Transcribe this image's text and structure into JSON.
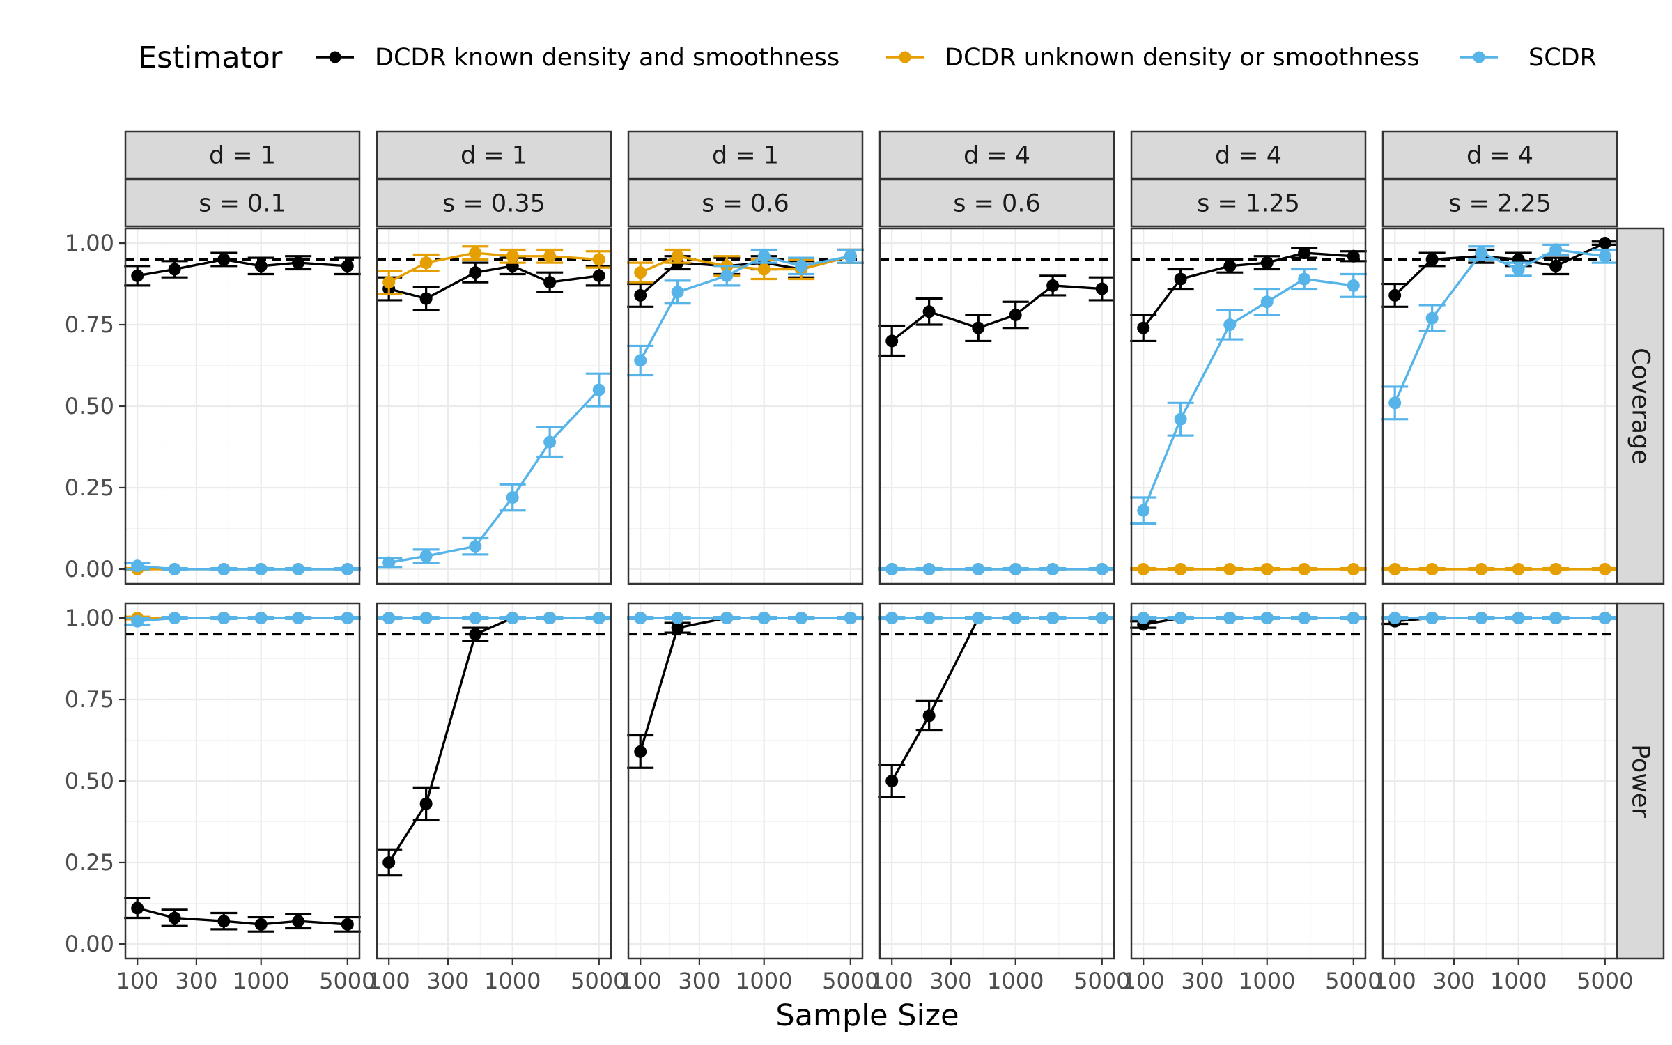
{
  "chart_data": {
    "type": "line",
    "xlabel": "Sample Size",
    "ylabel": "",
    "legend": {
      "title": "Estimator",
      "position": "top",
      "entries": [
        {
          "name": "DCDR known density and smoothness",
          "color": "#000000"
        },
        {
          "name": "DCDR unknown density or smoothness",
          "color": "#E69F00"
        },
        {
          "name": "SCDR",
          "color": "#56B4E9"
        }
      ]
    },
    "x": [
      100,
      200,
      500,
      1000,
      2000,
      5000
    ],
    "x_scale": "log",
    "x_ticks": [
      100,
      300,
      1000,
      5000
    ],
    "x_tick_labels": [
      "100",
      "300",
      "1000",
      "5000"
    ],
    "ylim": [
      0,
      1
    ],
    "y_ticks": [
      0,
      0.25,
      0.5,
      0.75,
      1
    ],
    "y_tick_labels": [
      "0.00",
      "0.25",
      "0.50",
      "0.75",
      "1.00"
    ],
    "reference_line": 0.95,
    "grid": true,
    "column_strips": [
      {
        "d": "d = 1",
        "s": "s = 0.1"
      },
      {
        "d": "d = 1",
        "s": "s = 0.35"
      },
      {
        "d": "d = 1",
        "s": "s = 0.6"
      },
      {
        "d": "d = 4",
        "s": "s = 0.6"
      },
      {
        "d": "d = 4",
        "s": "s = 1.25"
      },
      {
        "d": "d = 4",
        "s": "s = 2.25"
      }
    ],
    "row_strips": [
      "Coverage",
      "Power"
    ],
    "panels": [
      [
        {
          "series": [
            {
              "name": "DCDR known density and smoothness",
              "values": [
                0.9,
                0.92,
                0.95,
                0.93,
                0.94,
                0.93
              ],
              "err": [
                0.03,
                0.025,
                0.02,
                0.025,
                0.02,
                0.025
              ]
            },
            {
              "name": "DCDR unknown density or smoothness",
              "values": [
                0.0,
                0.0,
                0.0,
                0.0,
                0.0,
                0.0
              ],
              "err": [
                0.003,
                0.003,
                0.003,
                0.003,
                0.003,
                0.003
              ]
            },
            {
              "name": "SCDR",
              "values": [
                0.01,
                0.0,
                0.0,
                0.0,
                0.0,
                0.0
              ],
              "err": [
                0.01,
                0.003,
                0.003,
                0.003,
                0.003,
                0.003
              ]
            }
          ]
        },
        {
          "series": [
            {
              "name": "DCDR known density and smoothness",
              "values": [
                0.86,
                0.83,
                0.91,
                0.93,
                0.88,
                0.9
              ],
              "err": [
                0.035,
                0.035,
                0.03,
                0.025,
                0.03,
                0.03
              ]
            },
            {
              "name": "DCDR unknown density or smoothness",
              "values": [
                0.88,
                0.94,
                0.97,
                0.96,
                0.96,
                0.95
              ],
              "err": [
                0.035,
                0.025,
                0.02,
                0.02,
                0.02,
                0.025
              ]
            },
            {
              "name": "SCDR",
              "values": [
                0.02,
                0.04,
                0.07,
                0.22,
                0.39,
                0.55
              ],
              "err": [
                0.015,
                0.02,
                0.025,
                0.04,
                0.045,
                0.05
              ]
            }
          ]
        },
        {
          "series": [
            {
              "name": "DCDR known density and smoothness",
              "values": [
                0.84,
                0.94,
                0.93,
                0.94,
                0.92,
                0.96
              ],
              "err": [
                0.035,
                0.02,
                0.025,
                0.02,
                0.025,
                0.02
              ]
            },
            {
              "name": "DCDR unknown density or smoothness",
              "values": [
                0.91,
                0.96,
                0.93,
                0.92,
                0.92,
                0.96
              ],
              "err": [
                0.03,
                0.02,
                0.03,
                0.03,
                0.03,
                0.02
              ]
            },
            {
              "name": "SCDR",
              "values": [
                0.64,
                0.85,
                0.9,
                0.96,
                0.93,
                0.96
              ],
              "err": [
                0.045,
                0.035,
                0.03,
                0.02,
                0.025,
                0.02
              ]
            }
          ]
        },
        {
          "series": [
            {
              "name": "DCDR known density and smoothness",
              "values": [
                0.7,
                0.79,
                0.74,
                0.78,
                0.87,
                0.86
              ],
              "err": [
                0.045,
                0.04,
                0.04,
                0.04,
                0.03,
                0.035
              ]
            },
            {
              "name": "DCDR unknown density or smoothness",
              "values": [
                0.0,
                0.0,
                0.0,
                0.0,
                0.0,
                0.0
              ],
              "err": [
                0.003,
                0.003,
                0.003,
                0.003,
                0.003,
                0.003
              ]
            },
            {
              "name": "SCDR",
              "values": [
                0.0,
                0.0,
                0.0,
                0.0,
                0.0,
                0.0
              ],
              "err": [
                0.003,
                0.003,
                0.003,
                0.003,
                0.003,
                0.003
              ]
            }
          ]
        },
        {
          "series": [
            {
              "name": "DCDR known density and smoothness",
              "values": [
                0.74,
                0.89,
                0.93,
                0.94,
                0.97,
                0.96
              ],
              "err": [
                0.04,
                0.03,
                0.02,
                0.02,
                0.015,
                0.015
              ]
            },
            {
              "name": "DCDR unknown density or smoothness",
              "values": [
                0.0,
                0.0,
                0.0,
                0.0,
                0.0,
                0.0
              ],
              "err": [
                0.003,
                0.003,
                0.003,
                0.003,
                0.003,
                0.003
              ]
            },
            {
              "name": "SCDR",
              "values": [
                0.18,
                0.46,
                0.75,
                0.82,
                0.89,
                0.87
              ],
              "err": [
                0.04,
                0.05,
                0.045,
                0.04,
                0.03,
                0.035
              ]
            }
          ]
        },
        {
          "series": [
            {
              "name": "DCDR known density and smoothness",
              "values": [
                0.84,
                0.95,
                0.96,
                0.95,
                0.93,
                1.0
              ],
              "err": [
                0.035,
                0.02,
                0.02,
                0.02,
                0.025,
                0.005
              ]
            },
            {
              "name": "DCDR unknown density or smoothness",
              "values": [
                0.0,
                0.0,
                0.0,
                0.0,
                0.0,
                0.0
              ],
              "err": [
                0.003,
                0.003,
                0.003,
                0.003,
                0.003,
                0.003
              ]
            },
            {
              "name": "SCDR",
              "values": [
                0.51,
                0.77,
                0.97,
                0.92,
                0.98,
                0.96
              ],
              "err": [
                0.05,
                0.04,
                0.02,
                0.02,
                0.015,
                0.02
              ]
            }
          ]
        }
      ],
      [
        {
          "series": [
            {
              "name": "DCDR known density and smoothness",
              "values": [
                0.11,
                0.08,
                0.07,
                0.06,
                0.07,
                0.06
              ],
              "err": [
                0.03,
                0.025,
                0.025,
                0.022,
                0.022,
                0.022
              ]
            },
            {
              "name": "DCDR unknown density or smoothness",
              "values": [
                1.0,
                1.0,
                1.0,
                1.0,
                1.0,
                1.0
              ],
              "err": [
                0.004,
                0.003,
                0.003,
                0.003,
                0.003,
                0.003
              ]
            },
            {
              "name": "SCDR",
              "values": [
                0.99,
                1.0,
                1.0,
                1.0,
                1.0,
                1.0
              ],
              "err": [
                0.01,
                0.003,
                0.003,
                0.003,
                0.003,
                0.003
              ]
            }
          ]
        },
        {
          "series": [
            {
              "name": "DCDR known density and smoothness",
              "values": [
                0.25,
                0.43,
                0.95,
                1.0,
                1.0,
                1.0
              ],
              "err": [
                0.04,
                0.05,
                0.02,
                0.003,
                0.003,
                0.003
              ]
            },
            {
              "name": "DCDR unknown density or smoothness",
              "values": [
                1.0,
                1.0,
                1.0,
                1.0,
                1.0,
                1.0
              ],
              "err": [
                0.003,
                0.003,
                0.003,
                0.003,
                0.003,
                0.003
              ]
            },
            {
              "name": "SCDR",
              "values": [
                1.0,
                1.0,
                1.0,
                1.0,
                1.0,
                1.0
              ],
              "err": [
                0.003,
                0.003,
                0.003,
                0.003,
                0.003,
                0.003
              ]
            }
          ]
        },
        {
          "series": [
            {
              "name": "DCDR known density and smoothness",
              "values": [
                0.59,
                0.97,
                1.0,
                1.0,
                1.0,
                1.0
              ],
              "err": [
                0.05,
                0.015,
                0.003,
                0.003,
                0.003,
                0.003
              ]
            },
            {
              "name": "DCDR unknown density or smoothness",
              "values": [
                1.0,
                1.0,
                1.0,
                1.0,
                1.0,
                1.0
              ],
              "err": [
                0.003,
                0.003,
                0.003,
                0.003,
                0.003,
                0.003
              ]
            },
            {
              "name": "SCDR",
              "values": [
                1.0,
                1.0,
                1.0,
                1.0,
                1.0,
                1.0
              ],
              "err": [
                0.003,
                0.003,
                0.003,
                0.003,
                0.003,
                0.003
              ]
            }
          ]
        },
        {
          "series": [
            {
              "name": "DCDR known density and smoothness",
              "values": [
                0.5,
                0.7,
                1.0,
                1.0,
                1.0,
                1.0
              ],
              "err": [
                0.05,
                0.045,
                0.003,
                0.003,
                0.003,
                0.003
              ]
            },
            {
              "name": "DCDR unknown density or smoothness",
              "values": [
                1.0,
                1.0,
                1.0,
                1.0,
                1.0,
                1.0
              ],
              "err": [
                0.003,
                0.003,
                0.003,
                0.003,
                0.003,
                0.003
              ]
            },
            {
              "name": "SCDR",
              "values": [
                1.0,
                1.0,
                1.0,
                1.0,
                1.0,
                1.0
              ],
              "err": [
                0.003,
                0.003,
                0.003,
                0.003,
                0.003,
                0.003
              ]
            }
          ]
        },
        {
          "series": [
            {
              "name": "DCDR known density and smoothness",
              "values": [
                0.98,
                1.0,
                1.0,
                1.0,
                1.0,
                1.0
              ],
              "err": [
                0.01,
                0.003,
                0.003,
                0.003,
                0.003,
                0.003
              ]
            },
            {
              "name": "DCDR unknown density or smoothness",
              "values": [
                1.0,
                1.0,
                1.0,
                1.0,
                1.0,
                1.0
              ],
              "err": [
                0.003,
                0.003,
                0.003,
                0.003,
                0.003,
                0.003
              ]
            },
            {
              "name": "SCDR",
              "values": [
                1.0,
                1.0,
                1.0,
                1.0,
                1.0,
                1.0
              ],
              "err": [
                0.003,
                0.003,
                0.003,
                0.003,
                0.003,
                0.003
              ]
            }
          ]
        },
        {
          "series": [
            {
              "name": "DCDR known density and smoothness",
              "values": [
                0.99,
                1.0,
                1.0,
                1.0,
                1.0,
                1.0
              ],
              "err": [
                0.008,
                0.003,
                0.003,
                0.003,
                0.003,
                0.003
              ]
            },
            {
              "name": "DCDR unknown density or smoothness",
              "values": [
                1.0,
                1.0,
                1.0,
                1.0,
                1.0,
                1.0
              ],
              "err": [
                0.003,
                0.003,
                0.003,
                0.003,
                0.003,
                0.003
              ]
            },
            {
              "name": "SCDR",
              "values": [
                1.0,
                1.0,
                1.0,
                1.0,
                1.0,
                1.0
              ],
              "err": [
                0.003,
                0.003,
                0.003,
                0.003,
                0.003,
                0.003
              ]
            }
          ]
        }
      ]
    ]
  }
}
